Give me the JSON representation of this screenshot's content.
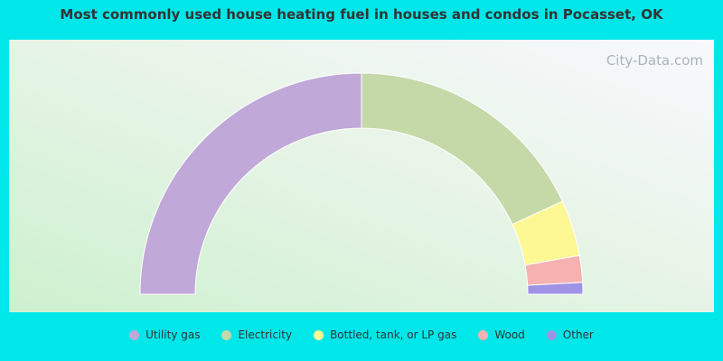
{
  "chart_data": {
    "type": "donut",
    "title": "Most commonly used house heating fuel in houses and condos in Pocasset, OK",
    "watermark": "City-Data.com",
    "categories": [
      "Utility gas",
      "Electricity",
      "Bottled, tank, or LP gas",
      "Wood",
      "Other"
    ],
    "values": [
      50,
      36.2,
      8.2,
      3.9,
      1.7
    ],
    "colors": [
      "#c0a8d8",
      "#c5d9a8",
      "#fdf794",
      "#f6b1b1",
      "#9f93e6"
    ]
  }
}
